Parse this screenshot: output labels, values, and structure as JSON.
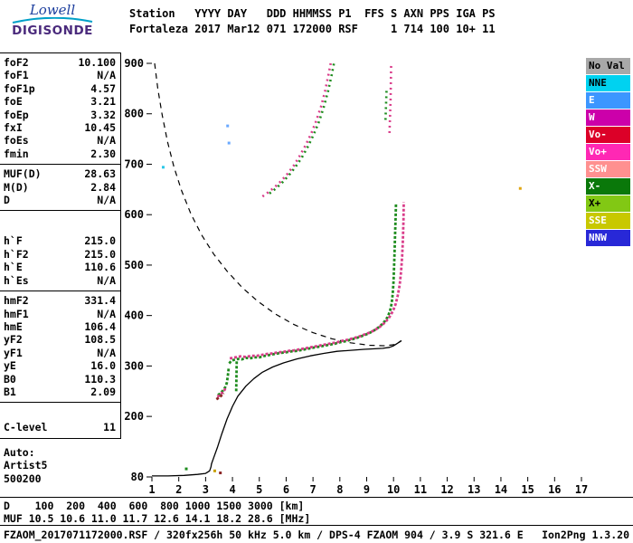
{
  "logo": {
    "line1": "Lowell",
    "line2": "DIGISONDE"
  },
  "header": {
    "line1": "Station   YYYY DAY   DDD HHMMSS P1  FFS S AXN PPS IGA PS",
    "line2": "Fortaleza 2017 Mar12 071 172000 RSF     1 714 100 10+ 11"
  },
  "params": {
    "sections": [
      {
        "rows": [
          [
            "foF2",
            "10.100"
          ],
          [
            "foF1",
            "N/A"
          ],
          [
            "foF1p",
            "4.57"
          ],
          [
            "foE",
            "3.21"
          ],
          [
            "foEp",
            "3.32"
          ],
          [
            "fxI",
            "10.45"
          ],
          [
            "foEs",
            "N/A"
          ],
          [
            "fmin",
            "2.30"
          ]
        ]
      },
      {
        "rows": [
          [
            "MUF(D)",
            "28.63"
          ],
          [
            "M(D)",
            "2.84"
          ],
          [
            "D",
            "N/A"
          ]
        ]
      },
      {
        "rows": [
          [
            "h`F",
            "215.0"
          ],
          [
            "h`F2",
            "215.0"
          ],
          [
            "h`E",
            "110.6"
          ],
          [
            "h`Es",
            "N/A"
          ]
        ]
      },
      {
        "rows": [
          [
            "hmF2",
            "331.4"
          ],
          [
            "hmF1",
            "N/A"
          ],
          [
            "hmE",
            "106.4"
          ],
          [
            "yF2",
            "108.5"
          ],
          [
            "yF1",
            "N/A"
          ],
          [
            "yE",
            "16.0"
          ],
          [
            "B0",
            "110.3"
          ],
          [
            "B1",
            "2.09"
          ]
        ]
      },
      {
        "rows": [
          [
            "C-level",
            "11"
          ]
        ]
      }
    ],
    "footer": [
      "Auto:",
      "Artist5",
      "500200"
    ]
  },
  "legend": {
    "items": [
      {
        "label": "No Val",
        "bg": "#a8a8a8",
        "fg": "#000000"
      },
      {
        "label": "NNE",
        "bg": "#00d2f0",
        "fg": "#000000"
      },
      {
        "label": "E",
        "bg": "#3c96ff",
        "fg": "#ffffff"
      },
      {
        "label": "W",
        "bg": "#cc00aa",
        "fg": "#ffffff"
      },
      {
        "label": "Vo-",
        "bg": "#dc0028",
        "fg": "#ffffff"
      },
      {
        "label": "Vo+",
        "bg": "#ff28b4",
        "fg": "#ffffff"
      },
      {
        "label": "SSW",
        "bg": "#ff9090",
        "fg": "#ffffff"
      },
      {
        "label": "X-",
        "bg": "#0a780a",
        "fg": "#ffffff"
      },
      {
        "label": "X+",
        "bg": "#82c814",
        "fg": "#000000"
      },
      {
        "label": "SSE",
        "bg": "#c8c800",
        "fg": "#ffffff"
      },
      {
        "label": "NNW",
        "bg": "#2828d7",
        "fg": "#ffffff"
      }
    ]
  },
  "chart_data": {
    "type": "scatter",
    "title": "",
    "xlabel": "",
    "ylabel": "",
    "xlim": [
      1,
      17
    ],
    "ylim": [
      80,
      900
    ],
    "x_ticks": [
      1,
      2,
      3,
      4,
      5,
      6,
      7,
      8,
      9,
      10,
      11,
      12,
      13,
      14,
      15,
      16,
      17
    ],
    "y_ticks": [
      80,
      200,
      300,
      400,
      500,
      600,
      700,
      800,
      900
    ],
    "grid": false,
    "legend_position": "right",
    "series": [
      {
        "name": "muf-transmission-curve",
        "color": "#000000",
        "style": "dashed",
        "points": [
          [
            1.1,
            900
          ],
          [
            1.22,
            850
          ],
          [
            1.38,
            798
          ],
          [
            1.58,
            745
          ],
          [
            1.82,
            695
          ],
          [
            2.1,
            648
          ],
          [
            2.45,
            602
          ],
          [
            2.85,
            560
          ],
          [
            3.3,
            522
          ],
          [
            3.8,
            488
          ],
          [
            4.35,
            456
          ],
          [
            4.95,
            428
          ],
          [
            5.6,
            403
          ],
          [
            6.3,
            382
          ],
          [
            7.0,
            366
          ],
          [
            7.7,
            354
          ],
          [
            8.4,
            346
          ],
          [
            9.1,
            341
          ],
          [
            9.7,
            340
          ],
          [
            10.1,
            343
          ],
          [
            10.3,
            350
          ]
        ]
      },
      {
        "name": "true-height-profile",
        "color": "#000000",
        "style": "line",
        "points": [
          [
            1.0,
            82
          ],
          [
            1.6,
            82
          ],
          [
            2.2,
            83
          ],
          [
            2.7,
            85
          ],
          [
            3.0,
            87
          ],
          [
            3.15,
            92
          ],
          [
            3.2,
            100
          ],
          [
            3.22,
            106
          ],
          [
            3.3,
            118
          ],
          [
            3.45,
            140
          ],
          [
            3.6,
            165
          ],
          [
            3.8,
            195
          ],
          [
            4.0,
            220
          ],
          [
            4.2,
            240
          ],
          [
            4.5,
            260
          ],
          [
            4.8,
            275
          ],
          [
            5.1,
            287
          ],
          [
            5.5,
            298
          ],
          [
            5.9,
            306
          ],
          [
            6.4,
            314
          ],
          [
            6.9,
            320
          ],
          [
            7.4,
            325
          ],
          [
            7.9,
            329
          ],
          [
            8.4,
            331
          ],
          [
            8.9,
            333
          ],
          [
            9.3,
            334
          ],
          [
            9.6,
            335
          ],
          [
            9.85,
            337
          ],
          [
            10.0,
            340
          ],
          [
            10.15,
            345
          ],
          [
            10.28,
            350
          ]
        ]
      },
      {
        "name": "f-trace-green",
        "color": "#1e8c1e",
        "style": "dots",
        "points": [
          [
            3.88,
            305
          ],
          [
            3.95,
            310
          ],
          [
            4.05,
            312
          ],
          [
            4.2,
            314
          ],
          [
            4.35,
            313
          ],
          [
            4.5,
            316
          ],
          [
            4.65,
            315
          ],
          [
            4.8,
            317
          ],
          [
            5.0,
            317
          ],
          [
            5.2,
            320
          ],
          [
            5.4,
            322
          ],
          [
            5.6,
            324
          ],
          [
            5.8,
            326
          ],
          [
            6.0,
            327
          ],
          [
            6.2,
            329
          ],
          [
            6.4,
            330
          ],
          [
            6.6,
            332
          ],
          [
            6.8,
            334
          ],
          [
            7.0,
            336
          ],
          [
            7.2,
            338
          ],
          [
            7.4,
            340
          ],
          [
            7.6,
            342
          ],
          [
            7.8,
            344
          ],
          [
            8.0,
            347
          ],
          [
            8.2,
            349
          ],
          [
            8.4,
            352
          ],
          [
            8.6,
            355
          ],
          [
            8.8,
            359
          ],
          [
            9.0,
            363
          ],
          [
            9.2,
            368
          ],
          [
            9.35,
            373
          ],
          [
            9.5,
            379
          ],
          [
            9.65,
            387
          ],
          [
            9.78,
            397
          ],
          [
            9.87,
            409
          ],
          [
            9.93,
            424
          ],
          [
            9.97,
            443
          ],
          [
            10.0,
            468
          ],
          [
            10.02,
            497
          ],
          [
            10.04,
            530
          ],
          [
            10.06,
            566
          ],
          [
            10.08,
            600
          ],
          [
            10.09,
            622
          ]
        ]
      },
      {
        "name": "f-trace-pink",
        "color": "#d93d8a",
        "style": "dots",
        "points": [
          [
            3.9,
            315
          ],
          [
            4.1,
            317
          ],
          [
            4.3,
            319
          ],
          [
            4.5,
            318
          ],
          [
            4.7,
            320
          ],
          [
            4.9,
            320
          ],
          [
            5.1,
            322
          ],
          [
            5.3,
            324
          ],
          [
            5.5,
            325
          ],
          [
            5.7,
            327
          ],
          [
            5.9,
            328
          ],
          [
            6.1,
            330
          ],
          [
            6.3,
            331
          ],
          [
            6.5,
            333
          ],
          [
            6.7,
            335
          ],
          [
            6.9,
            337
          ],
          [
            7.1,
            339
          ],
          [
            7.3,
            341
          ],
          [
            7.5,
            343
          ],
          [
            7.7,
            345
          ],
          [
            7.9,
            347
          ],
          [
            8.1,
            350
          ],
          [
            8.3,
            352
          ],
          [
            8.5,
            355
          ],
          [
            8.7,
            358
          ],
          [
            8.9,
            362
          ],
          [
            9.1,
            366
          ],
          [
            9.3,
            371
          ],
          [
            9.5,
            378
          ],
          [
            9.7,
            387
          ],
          [
            9.85,
            397
          ],
          [
            9.98,
            409
          ],
          [
            10.08,
            423
          ],
          [
            10.16,
            440
          ],
          [
            10.23,
            461
          ],
          [
            10.28,
            487
          ],
          [
            10.32,
            517
          ],
          [
            10.35,
            552
          ],
          [
            10.37,
            590
          ],
          [
            10.38,
            625
          ]
        ]
      },
      {
        "name": "f-trace-lead-green",
        "color": "#1e8c1e",
        "style": "dots",
        "points": [
          [
            3.46,
            242
          ],
          [
            3.55,
            246
          ],
          [
            3.64,
            251
          ],
          [
            3.72,
            257
          ],
          [
            3.79,
            266
          ],
          [
            3.83,
            281
          ],
          [
            3.86,
            296
          ]
        ]
      },
      {
        "name": "f-trace-lead-pink",
        "color": "#d93d8a",
        "style": "dots",
        "points": [
          [
            3.44,
            239
          ],
          [
            3.53,
            242
          ],
          [
            3.62,
            247
          ],
          [
            3.7,
            252
          ],
          [
            3.76,
            258
          ]
        ]
      },
      {
        "name": "f-trace-lead-dark",
        "color": "#8b2525",
        "style": "dots",
        "points": [
          [
            3.4,
            234
          ],
          [
            3.49,
            237
          ],
          [
            3.58,
            241
          ],
          [
            3.67,
            246
          ]
        ]
      },
      {
        "name": "green-vertical-spread",
        "color": "#1e8c1e",
        "style": "dots",
        "points": [
          [
            4.14,
            250
          ],
          [
            4.15,
            280
          ],
          [
            4.16,
            312
          ]
        ]
      },
      {
        "name": "second-hop-pink",
        "color": "#d93d8a",
        "style": "dots-sparse",
        "points": [
          [
            5.12,
            636
          ],
          [
            5.35,
            645
          ],
          [
            5.58,
            655
          ],
          [
            5.82,
            667
          ],
          [
            6.05,
            681
          ],
          [
            6.28,
            697
          ],
          [
            6.5,
            716
          ],
          [
            6.72,
            737
          ],
          [
            6.93,
            760
          ],
          [
            7.12,
            786
          ],
          [
            7.3,
            814
          ],
          [
            7.45,
            845
          ],
          [
            7.58,
            878
          ],
          [
            7.66,
            900
          ]
        ]
      },
      {
        "name": "second-hop-green",
        "color": "#1e8c1e",
        "style": "dots-sparse",
        "points": [
          [
            5.38,
            642
          ],
          [
            5.62,
            652
          ],
          [
            5.86,
            664
          ],
          [
            6.1,
            678
          ],
          [
            6.34,
            694
          ],
          [
            6.58,
            713
          ],
          [
            6.8,
            734
          ],
          [
            7.02,
            758
          ],
          [
            7.22,
            784
          ],
          [
            7.4,
            813
          ],
          [
            7.56,
            845
          ],
          [
            7.7,
            878
          ],
          [
            7.78,
            900
          ]
        ]
      },
      {
        "name": "second-hop-pink-asymptote",
        "color": "#d93d8a",
        "style": "dots-sparse",
        "points": [
          [
            9.85,
            762
          ],
          [
            9.87,
            795
          ],
          [
            9.89,
            828
          ],
          [
            9.9,
            862
          ],
          [
            9.91,
            895
          ]
        ]
      },
      {
        "name": "second-hop-green-asymptote",
        "color": "#1e8c1e",
        "style": "dots-sparse",
        "points": [
          [
            9.7,
            788
          ],
          [
            9.72,
            818
          ],
          [
            9.74,
            848
          ]
        ]
      },
      {
        "name": "noise-echo-dots",
        "style": "points",
        "points": [
          [
            1.42,
            694,
            "#2bc8e8"
          ],
          [
            3.82,
            776,
            "#6aa9ff"
          ],
          [
            3.87,
            742,
            "#6aa9ff"
          ],
          [
            14.72,
            652,
            "#e0a50f"
          ],
          [
            2.28,
            96,
            "#1e8c1e"
          ],
          [
            3.34,
            92,
            "#c8a000"
          ],
          [
            3.55,
            88,
            "#8b2525"
          ]
        ]
      }
    ]
  },
  "bottom": {
    "d_row": {
      "label": "D",
      "values": [
        "100",
        "200",
        "400",
        "600",
        "800",
        "1000",
        "1500",
        "3000"
      ],
      "unit": "[km]"
    },
    "muf_row": {
      "label": "MUF",
      "values": [
        "10.5",
        "10.6",
        "11.0",
        "11.7",
        "12.6",
        "14.1",
        "18.2",
        "28.6"
      ],
      "unit": "[MHz]"
    },
    "info_left": "FZAOM_2017071172000.RSF / 320fx256h 50 kHz 5.0 km / DPS-4 FZAOM 904 / 3.9 S 321.6 E",
    "info_right": "Ion2Png 1.3.20"
  }
}
